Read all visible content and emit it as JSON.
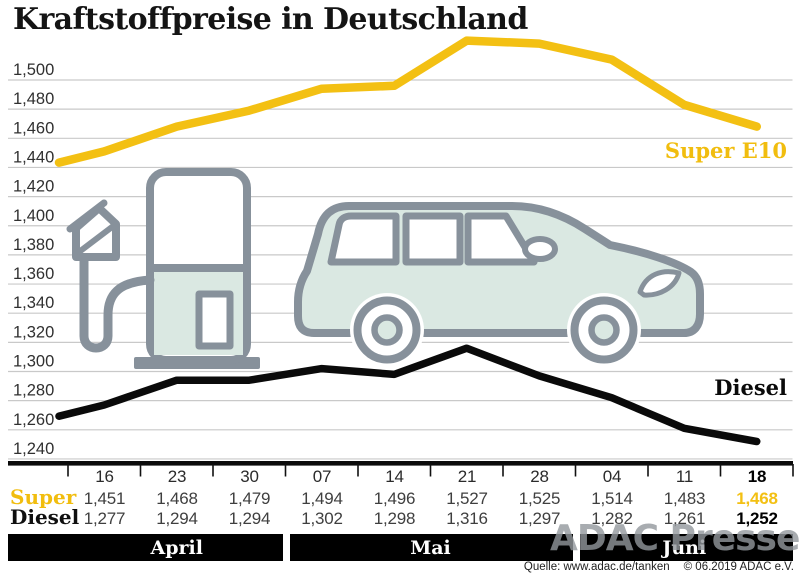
{
  "title": "Kraftstoffpreise in Deutschland",
  "watermark": "ADAC Presse",
  "source": {
    "quelle": "Quelle: www.adac.de/tanken",
    "copyright": "© 06.2019  ADAC e.V."
  },
  "colors": {
    "super_yellow": "#F3C013",
    "diesel_black": "#0a0a0a",
    "gridline": "#c9c9c9",
    "axis": "#0b0b0b",
    "icon_outline_gray": "#87919B",
    "icon_fill_mint": "#DAE8E2",
    "month_bar_bg": "#000000",
    "month_bar_text": "#ffffff",
    "value_text": "#3f3f3f",
    "date_text": "#2b2b2b"
  },
  "chart_data": {
    "type": "line",
    "title": "Kraftstoffpreise in Deutschland",
    "x_categories": [
      "16",
      "23",
      "30",
      "07",
      "14",
      "21",
      "28",
      "04",
      "11",
      "18"
    ],
    "months": [
      {
        "label": "April",
        "from": 0,
        "to": 2
      },
      {
        "label": "Mai",
        "from": 3,
        "to": 6
      },
      {
        "label": "Juni",
        "from": 7,
        "to": 9
      }
    ],
    "ylim": [
      1240,
      1500
    ],
    "ytick_step": 20,
    "ytick_labels": [
      "1,500",
      "1,480",
      "1,460",
      "1,440",
      "1,420",
      "1,400",
      "1,380",
      "1,360",
      "1,340",
      "1,320",
      "1,300",
      "1,280",
      "1,260",
      "1,240"
    ],
    "grid": true,
    "legend_position": "inline-right",
    "series": [
      {
        "name": "Super E10",
        "line_label": "Super E10",
        "table_label": "Super",
        "color": "#F3C013",
        "values": [
          1451,
          1468,
          1479,
          1494,
          1496,
          1527,
          1525,
          1514,
          1483,
          1468
        ],
        "display": [
          "1,451",
          "1,468",
          "1,479",
          "1,494",
          "1,496",
          "1,527",
          "1,525",
          "1,514",
          "1,483",
          "1,468"
        ]
      },
      {
        "name": "Diesel",
        "line_label": "Diesel",
        "table_label": "Diesel",
        "color": "#0a0a0a",
        "values": [
          1277,
          1294,
          1294,
          1302,
          1298,
          1316,
          1297,
          1282,
          1261,
          1252
        ],
        "display": [
          "1,277",
          "1,294",
          "1,294",
          "1,302",
          "1,298",
          "1,316",
          "1,297",
          "1,282",
          "1,261",
          "1,252"
        ]
      }
    ],
    "last_column_highlighted": true
  }
}
